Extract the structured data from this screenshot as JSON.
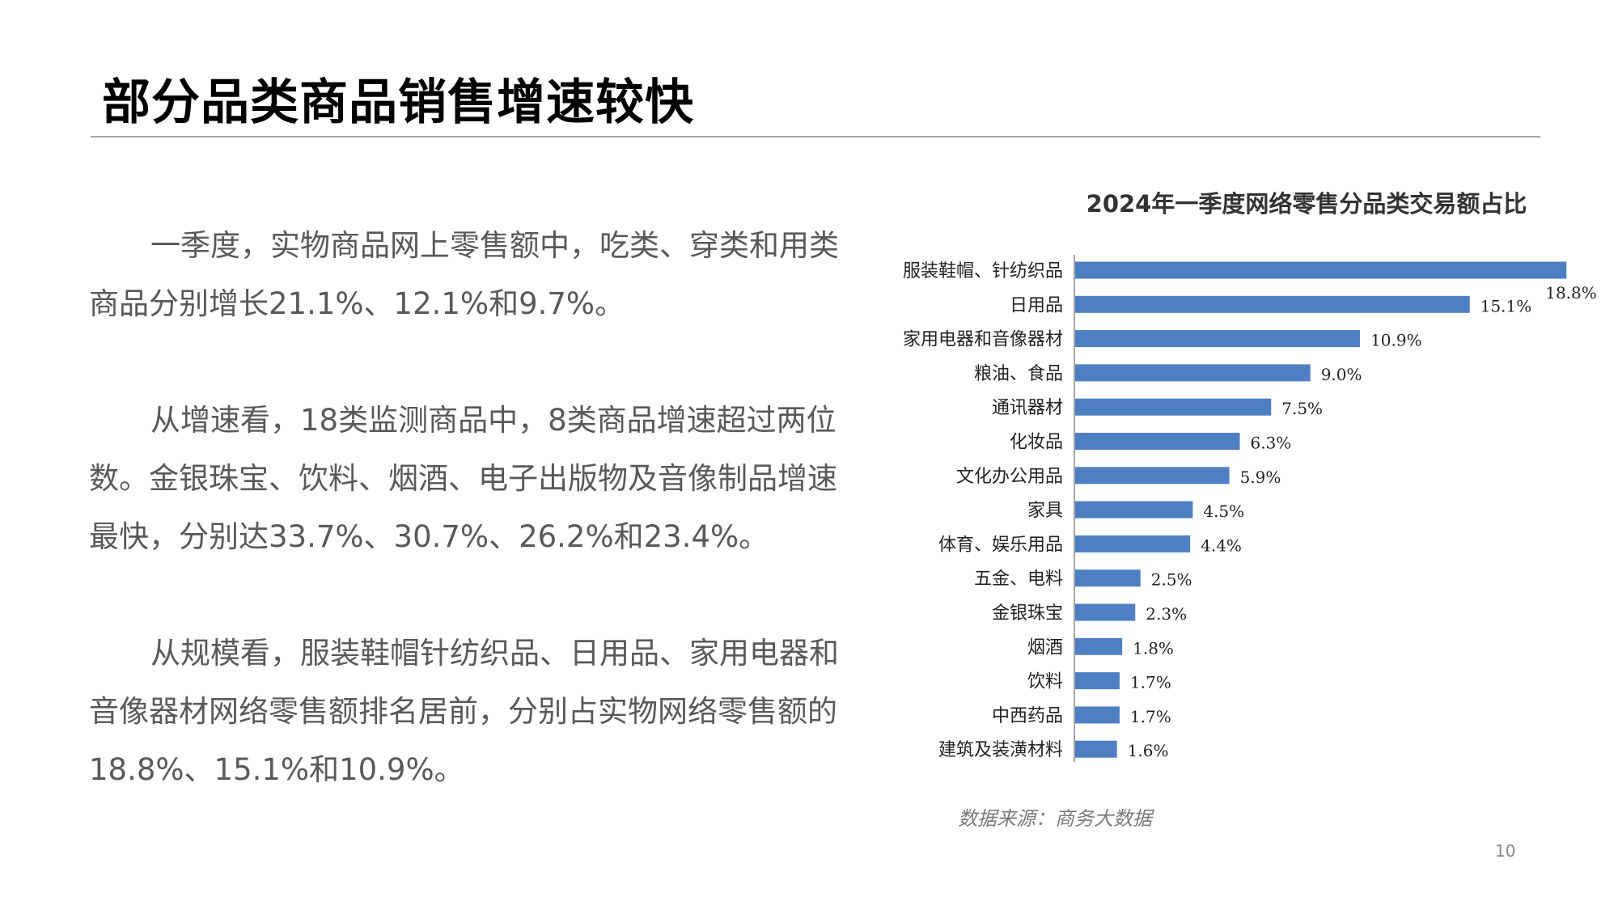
{
  "slide": {
    "title": "部分品类商品销售增速较快",
    "paragraphs": [
      "一季度，实物商品网上零售额中，吃类、穿类和用类商品分别增长21.1%、12.1%和9.7%。",
      "从增速看，18类监测商品中，8类商品增速超过两位数。金银珠宝、饮料、烟酒、电子出版物及音像制品增速最快，分别达33.7%、30.7%、26.2%和23.4%。",
      "从规模看，服装鞋帽针纺织品、日用品、家用电器和音像器材网络零售额排名居前，分别占实物网络零售额的18.8%、15.1%和10.9%。"
    ],
    "source": "数据来源：商务大数据",
    "page_number": "10"
  },
  "chart_data": {
    "type": "bar",
    "orientation": "horizontal",
    "title": "2024年一季度网络零售分品类交易额占比",
    "xlabel": "",
    "ylabel": "",
    "xlim": [
      0,
      20
    ],
    "grid": false,
    "legend": "none",
    "bar_color": "#4e7fc3",
    "categories": [
      "服装鞋帽、针纺织品",
      "日用品",
      "家用电器和音像器材",
      "粮油、食品",
      "通讯器材",
      "化妆品",
      "文化办公用品",
      "家具",
      "体育、娱乐用品",
      "五金、电料",
      "金银珠宝",
      "烟酒",
      "饮料",
      "中西药品",
      "建筑及装潢材料"
    ],
    "values": [
      18.8,
      15.1,
      10.9,
      9.0,
      7.5,
      6.3,
      5.9,
      4.5,
      4.4,
      2.5,
      2.3,
      1.8,
      1.7,
      1.7,
      1.6
    ],
    "data_labels": [
      "18.8%",
      "15.1%",
      "10.9%",
      "9.0%",
      "7.5%",
      "6.3%",
      "5.9%",
      "4.5%",
      "4.4%",
      "2.5%",
      "2.3%",
      "1.8%",
      "1.7%",
      "1.7%",
      "1.6%"
    ]
  }
}
